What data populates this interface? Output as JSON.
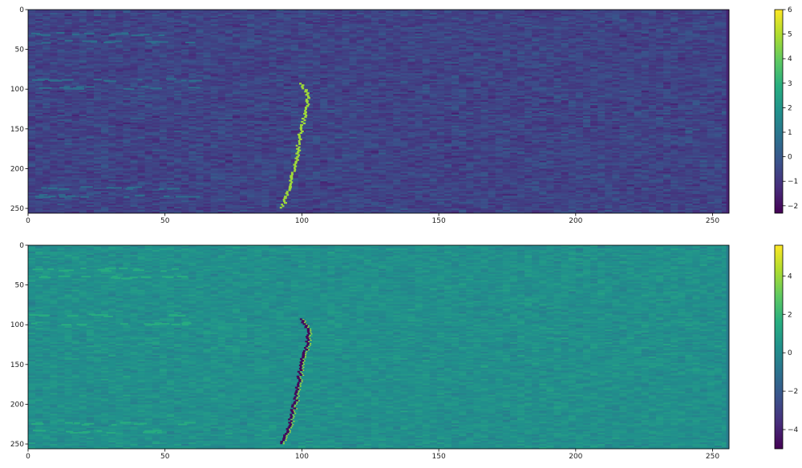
{
  "chart_data": [
    {
      "type": "heatmap",
      "title": "",
      "xlabel": "",
      "ylabel": "",
      "colormap": "viridis",
      "xlim": [
        0,
        256
      ],
      "ylim": [
        256,
        0
      ],
      "xticks": [
        0,
        50,
        100,
        150,
        200,
        250
      ],
      "yticks": [
        0,
        50,
        100,
        150,
        200,
        250
      ],
      "background_mean": -0.6,
      "vmin": -2.3,
      "vmax": 6,
      "colorbar_ticks": [
        6,
        5,
        4,
        3,
        2,
        1,
        0,
        -1,
        -2
      ],
      "track": {
        "rows": [
          92,
          100,
          110,
          120,
          130,
          140,
          150,
          160,
          170,
          180,
          190,
          200,
          210,
          220,
          230,
          240,
          248
        ],
        "x": [
          100,
          101.5,
          102.5,
          102.3,
          101.6,
          100.6,
          99.8,
          99.3,
          98.9,
          98.6,
          98.0,
          97.3,
          96.6,
          95.8,
          95.0,
          93.8,
          92.5
        ],
        "value": 4.8
      }
    },
    {
      "type": "heatmap",
      "title": "",
      "xlabel": "",
      "ylabel": "",
      "colormap": "viridis",
      "xlim": [
        0,
        256
      ],
      "ylim": [
        256,
        0
      ],
      "xticks": [
        0,
        50,
        100,
        150,
        200,
        250
      ],
      "yticks": [
        0,
        50,
        100,
        150,
        200,
        250
      ],
      "background_mean": 0.3,
      "vmin": -5,
      "vmax": 5.6,
      "colorbar_ticks": [
        4,
        2,
        0,
        -2,
        -4
      ],
      "track": {
        "rows": [
          92,
          100,
          110,
          120,
          130,
          140,
          150,
          160,
          170,
          180,
          190,
          200,
          210,
          220,
          230,
          240,
          248
        ],
        "x": [
          100,
          101.5,
          102.5,
          102.3,
          101.6,
          100.6,
          99.8,
          99.3,
          98.9,
          98.6,
          98.0,
          97.3,
          96.6,
          95.8,
          95.0,
          93.8,
          92.5
        ],
        "value": -4.8
      }
    }
  ]
}
